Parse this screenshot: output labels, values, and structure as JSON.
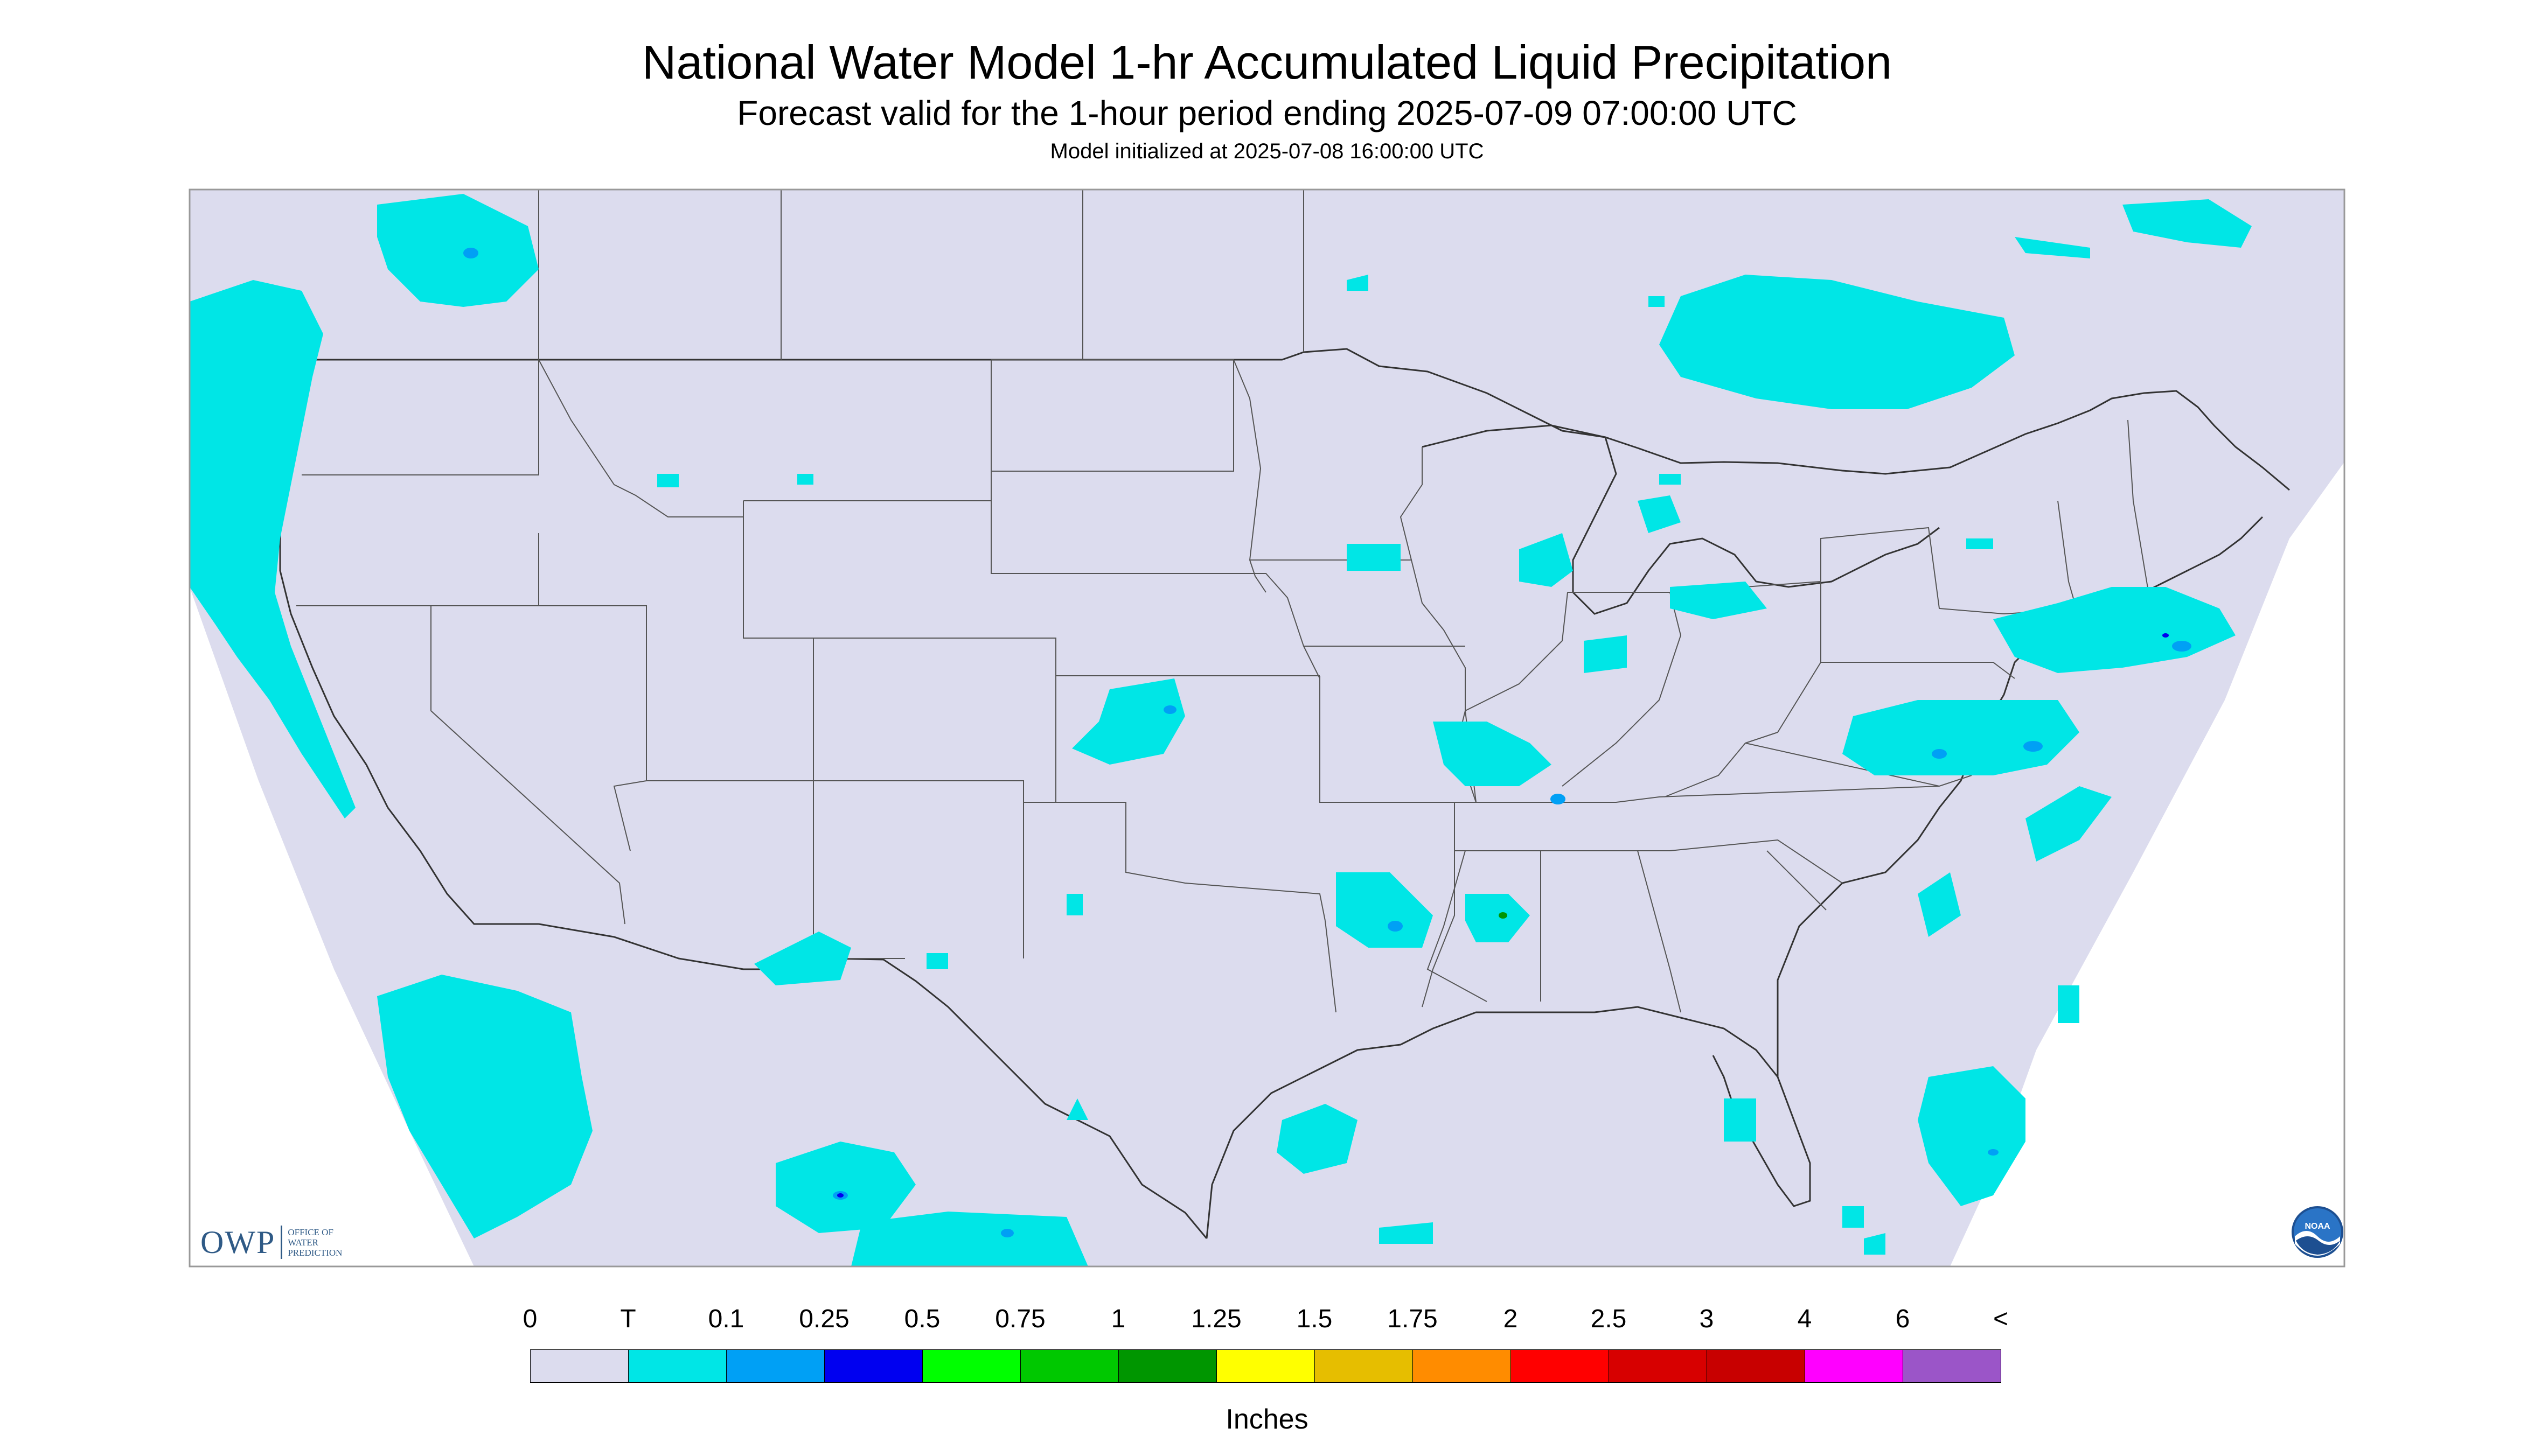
{
  "header": {
    "title": "National Water Model 1-hr Accumulated Liquid Precipitation",
    "subtitle": "Forecast valid for the 1-hour period ending 2025-07-09 07:00:00 UTC",
    "init": "Model initialized at 2025-07-08 16:00:00 UTC"
  },
  "logo": {
    "owp_letters": "OWP",
    "owp_line1": "OFFICE OF",
    "owp_line2": "WATER",
    "owp_line3": "PREDICTION",
    "noaa_text": "NOAA"
  },
  "colors": {
    "background": "#dcdcee",
    "land_outside": "#ffffff",
    "border_line": "#333333",
    "precip_trace": "#00e6e6",
    "precip_0_1": "#00a0f5",
    "precip_0_25": "#0000ee"
  },
  "legend": {
    "labels": [
      "0",
      "T",
      "0.1",
      "0.25",
      "0.5",
      "0.75",
      "1",
      "1.25",
      "1.5",
      "1.75",
      "2",
      "2.5",
      "3",
      "4",
      "6",
      "<"
    ],
    "swatches": [
      "#dcdcee",
      "#00e6e6",
      "#00a0f5",
      "#0000f0",
      "#00ff00",
      "#00c800",
      "#009600",
      "#ffff00",
      "#e6be00",
      "#ff8c00",
      "#ff0000",
      "#d70000",
      "#c80000",
      "#ff00ff",
      "#9b55c8"
    ],
    "units": "Inches"
  }
}
